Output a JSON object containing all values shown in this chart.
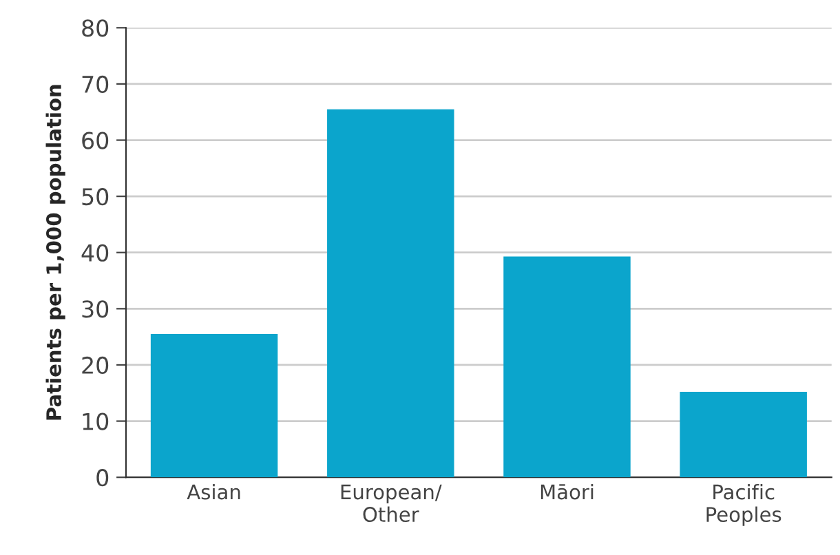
{
  "chart_data": {
    "type": "bar",
    "ylabel": "Patients per 1,000 population",
    "categories": [
      "Asian",
      "European/\nOther",
      "Māori",
      "Pacific\nPeoples"
    ],
    "values": [
      25.5,
      65.5,
      39.3,
      15.2
    ],
    "color": "#0ba5cc",
    "ylim": [
      0,
      80
    ],
    "yticks": [
      0,
      10,
      20,
      30,
      40,
      50,
      60,
      70,
      80
    ],
    "grid": "y"
  }
}
